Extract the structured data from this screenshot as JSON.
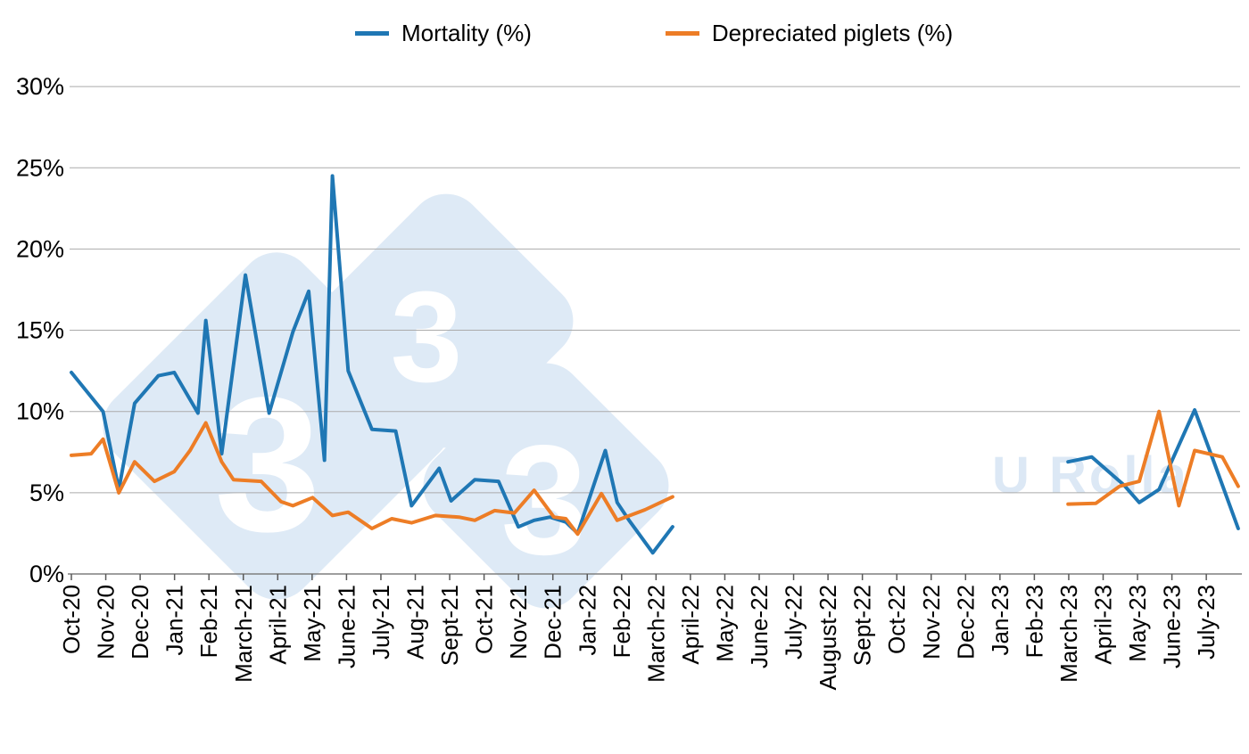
{
  "page": {
    "background": "#FFFFFF"
  },
  "legend": {
    "items": [
      {
        "label": "Mortality (%)",
        "color": "#1F77B4"
      },
      {
        "label": "Depreciated piglets (%)",
        "color": "#ED7D26"
      }
    ]
  },
  "watermark": {
    "digits": [
      "3",
      "3",
      "3"
    ],
    "brand_text": "U Rolla",
    "diamond_color": "#DEEAF6",
    "digit_color": "#FFFFFF",
    "text_color": "#DCE8F5"
  },
  "chart_data": {
    "type": "line",
    "title": "",
    "unit": "percent",
    "legend_position": "top",
    "grid": true,
    "y_axis": {
      "min": 0,
      "max": 30,
      "step": 5,
      "tick_labels": [
        "0%",
        "5%",
        "10%",
        "15%",
        "20%",
        "25%",
        "30%"
      ]
    },
    "x_axis": {
      "month_labels": [
        "Oct-20",
        "Nov-20",
        "Dec-20",
        "Jan-21",
        "Feb-21",
        "March-21",
        "April-21",
        "May-21",
        "June-21",
        "July-21",
        "Aug-21",
        "Sept-21",
        "Oct-21",
        "Nov-21",
        "Dec-21",
        "Jan-22",
        "Feb-22",
        "March-22",
        "April-22",
        "May-22",
        "June-22",
        "July-22",
        "August-22",
        "Sept-22",
        "Oct-22",
        "Nov-22",
        "Dec-22",
        "Jan-23",
        "Feb-23",
        "March-23",
        "April-23",
        "May-23",
        "June-23",
        "July-23"
      ],
      "cadence_note": "weekly data points, monthly tick labels; gap with no data from mid April-22 until March-23",
      "point_format": "[week_index_from_Oct-20, percent_value]"
    },
    "series": [
      {
        "name": "Mortality (%)",
        "color": "#1F77B4",
        "segments": [
          [
            [
              0,
              12.4
            ],
            [
              2,
              11.2
            ],
            [
              4,
              10.0
            ],
            [
              6,
              5.2
            ],
            [
              8,
              10.5
            ],
            [
              11,
              12.2
            ],
            [
              13,
              12.4
            ],
            [
              16,
              9.9
            ],
            [
              17,
              15.6
            ],
            [
              19,
              7.4
            ],
            [
              22,
              18.4
            ],
            [
              25,
              9.9
            ],
            [
              28,
              14.9
            ],
            [
              30,
              17.4
            ],
            [
              32,
              7.0
            ],
            [
              33,
              24.5
            ],
            [
              35,
              12.5
            ],
            [
              38,
              8.9
            ],
            [
              41,
              8.8
            ],
            [
              43,
              4.2
            ],
            [
              46.5,
              6.5
            ],
            [
              48,
              4.5
            ],
            [
              51,
              5.8
            ],
            [
              54,
              5.7
            ],
            [
              56.5,
              2.9
            ],
            [
              58.5,
              3.3
            ],
            [
              60.5,
              3.5
            ],
            [
              62.5,
              3.2
            ],
            [
              64,
              2.5
            ],
            [
              67.5,
              7.6
            ],
            [
              69,
              4.4
            ],
            [
              70.5,
              3.3
            ],
            [
              73.5,
              1.3
            ],
            [
              76,
              2.9
            ]
          ],
          [
            [
              126,
              6.9
            ],
            [
              129,
              7.2
            ],
            [
              133,
              5.5
            ],
            [
              135,
              4.4
            ],
            [
              137.5,
              5.2
            ],
            [
              142,
              10.1
            ],
            [
              144.5,
              6.8
            ],
            [
              147.5,
              2.8
            ]
          ]
        ]
      },
      {
        "name": "Depreciated piglets (%)",
        "color": "#ED7D26",
        "segments": [
          [
            [
              0,
              7.3
            ],
            [
              2.5,
              7.4
            ],
            [
              4,
              8.3
            ],
            [
              6,
              5.0
            ],
            [
              8,
              6.9
            ],
            [
              10.5,
              5.7
            ],
            [
              13,
              6.3
            ],
            [
              15,
              7.6
            ],
            [
              17,
              9.3
            ],
            [
              19,
              6.9
            ],
            [
              20.5,
              5.8
            ],
            [
              24,
              5.7
            ],
            [
              26.5,
              4.45
            ],
            [
              28,
              4.2
            ],
            [
              30.5,
              4.7
            ],
            [
              33,
              3.6
            ],
            [
              35,
              3.8
            ],
            [
              38,
              2.8
            ],
            [
              40.5,
              3.4
            ],
            [
              43,
              3.15
            ],
            [
              46,
              3.6
            ],
            [
              49,
              3.5
            ],
            [
              51,
              3.3
            ],
            [
              53.5,
              3.9
            ],
            [
              56,
              3.75
            ],
            [
              58.5,
              5.15
            ],
            [
              61,
              3.5
            ],
            [
              62.5,
              3.4
            ],
            [
              64,
              2.45
            ],
            [
              67,
              4.95
            ],
            [
              69,
              3.3
            ],
            [
              72.5,
              3.95
            ],
            [
              76,
              4.75
            ]
          ],
          [
            [
              126,
              4.3
            ],
            [
              129.5,
              4.35
            ],
            [
              132.5,
              5.4
            ],
            [
              135,
              5.7
            ],
            [
              137.5,
              10.0
            ],
            [
              140,
              4.2
            ],
            [
              142,
              7.6
            ],
            [
              145.5,
              7.2
            ],
            [
              147.5,
              5.4
            ]
          ]
        ]
      }
    ]
  }
}
